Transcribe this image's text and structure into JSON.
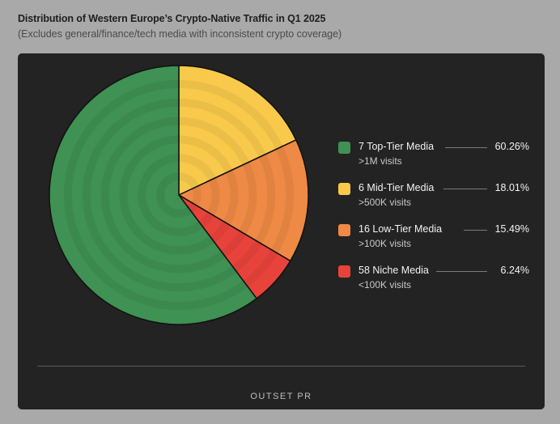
{
  "title": "Distribution of Western Europe’s Crypto-Native Traffic in Q1 2025",
  "subtitle": "(Excludes general/finance/tech media with inconsistent crypto coverage)",
  "brand": "OUTSET PR",
  "colors": {
    "page_bg": "#a9a9a9",
    "card_bg": "#232323",
    "top_tier": "#3f9154",
    "mid_tier": "#f8c94b",
    "low_tier": "#ee8a45",
    "niche": "#e8433a"
  },
  "chart_data": {
    "type": "pie",
    "categories": [
      "7 Top-Tier Media",
      "6 Mid-Tier Media",
      "16 Low-Tier Media",
      "58 Niche Media"
    ],
    "values": [
      60.26,
      18.01,
      15.49,
      6.24
    ],
    "sublabels": [
      ">1M visits",
      ">500K visits",
      ">100K visits",
      "<100K visits"
    ],
    "labels": [
      "60.26%",
      "18.01%",
      "15.49%",
      "6.24%"
    ],
    "colors": [
      "#3f9154",
      "#f8c94b",
      "#ee8a45",
      "#e8433a"
    ],
    "legend_position": "right"
  }
}
